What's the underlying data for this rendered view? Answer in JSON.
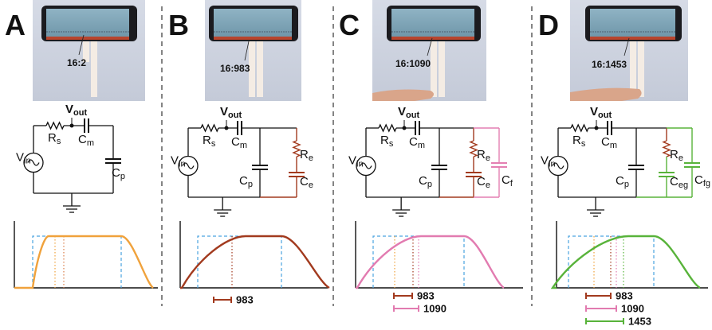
{
  "panels": [
    {
      "letter": "A",
      "phone_label": "16:2",
      "circuit": {
        "vin": "V",
        "vin_sub": "in",
        "vout": "V",
        "vout_sub": "out",
        "rs": "R",
        "rs_sub": "s",
        "cm": "C",
        "cm_sub": "m",
        "cp": "C",
        "cp_sub": "p"
      },
      "load": null,
      "legend": []
    },
    {
      "letter": "B",
      "phone_label": "16:983",
      "circuit": {
        "vin": "V",
        "vin_sub": "in",
        "vout": "V",
        "vout_sub": "out",
        "rs": "R",
        "rs_sub": "s",
        "cm": "C",
        "cm_sub": "m",
        "cp": "C",
        "cp_sub": "p"
      },
      "load": {
        "r": "R",
        "r_sub": "e",
        "c": "C",
        "c_sub": "e",
        "color": "#a23a1e"
      },
      "legend": [
        {
          "label": "983",
          "color": "#a23a1e"
        }
      ]
    },
    {
      "letter": "C",
      "phone_label": "16:1090",
      "circuit": {
        "vin": "V",
        "vin_sub": "in",
        "vout": "V",
        "vout_sub": "out",
        "rs": "R",
        "rs_sub": "s",
        "cm": "C",
        "cm_sub": "m",
        "cp": "C",
        "cp_sub": "p"
      },
      "load": {
        "r": "R",
        "r_sub": "e",
        "c": "C",
        "c_sub": "e",
        "color": "#a23a1e",
        "extra": "C",
        "extra_sub": "f",
        "extra_color": "#e47fb2"
      },
      "legend": [
        {
          "label": "983",
          "color": "#a23a1e"
        },
        {
          "label": "1090",
          "color": "#e27bb0"
        }
      ]
    },
    {
      "letter": "D",
      "phone_label": "16:1453",
      "circuit": {
        "vin": "V",
        "vin_sub": "in",
        "vout": "V",
        "vout_sub": "out",
        "rs": "R",
        "rs_sub": "s",
        "cm": "C",
        "cm_sub": "m",
        "cp": "C",
        "cp_sub": "p"
      },
      "load": {
        "r": "R",
        "r_sub": "e",
        "c": "C",
        "c_sub": "eg",
        "color": "#a23a1e",
        "c_color": "#58b33a",
        "extra": "C",
        "extra_sub": "fg",
        "extra_color": "#58b33a"
      },
      "legend": [
        {
          "label": "983",
          "color": "#a23a1e"
        },
        {
          "label": "1090",
          "color": "#e27bb0"
        },
        {
          "label": "1453",
          "color": "#58b33a"
        }
      ]
    }
  ],
  "colors": {
    "curve_A": "#f0a23c",
    "curve_B": "#a23a1e",
    "curve_C": "#e27bb0",
    "curve_D": "#58b33a",
    "pulse_dash": "#4aa3e0",
    "divider": "#333333"
  }
}
